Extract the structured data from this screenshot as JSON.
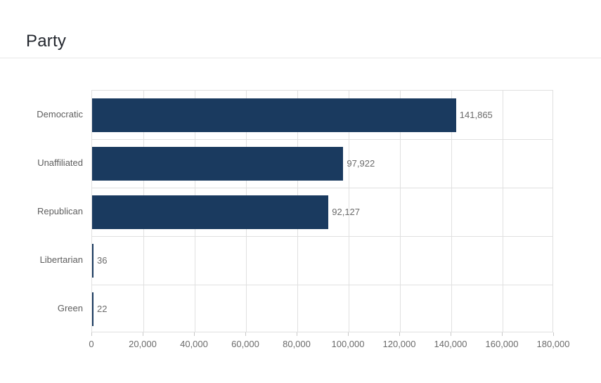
{
  "header": {
    "title": "Party"
  },
  "colors": {
    "bar": "#1a3a5f",
    "grid": "#e0e0e0",
    "tick": "#c8c8c8",
    "axis_text": "#6b6b6b",
    "category_text": "#5e5e5e",
    "title_text": "#23272e",
    "divider": "#e7e7e7",
    "background": "#ffffff"
  },
  "chart_data": {
    "type": "bar",
    "orientation": "horizontal",
    "title": "Party",
    "categories": [
      "Democratic",
      "Unaffiliated",
      "Republican",
      "Libertarian",
      "Green"
    ],
    "values": [
      141865,
      97922,
      92127,
      36,
      22
    ],
    "value_labels": [
      "141,865",
      "97,922",
      "92,127",
      "36",
      "22"
    ],
    "xlabel": "",
    "ylabel": "",
    "xlim": [
      0,
      180000
    ],
    "x_ticks": [
      0,
      20000,
      40000,
      60000,
      80000,
      100000,
      120000,
      140000,
      160000,
      180000
    ],
    "x_tick_labels": [
      "0",
      "20,000",
      "40,000",
      "60,000",
      "80,000",
      "100,000",
      "120,000",
      "140,000",
      "160,000",
      "180,000"
    ],
    "grid": true,
    "legend": false
  }
}
